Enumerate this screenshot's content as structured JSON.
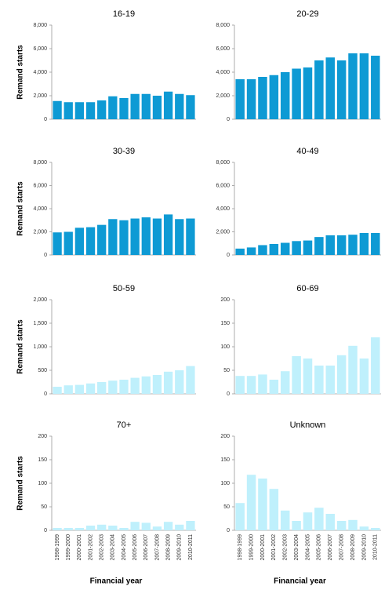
{
  "chart_data": [
    {
      "type": "bar",
      "title": "16-19",
      "ylabel": "Remand starts",
      "color": "#0e9ad4",
      "values": [
        1550,
        1450,
        1450,
        1450,
        1600,
        1950,
        1800,
        2150,
        2150,
        2000,
        2350,
        2150,
        2050
      ],
      "ylim": [
        0,
        8000
      ],
      "yticks": [
        0,
        {
          "value": 2000,
          "label": "2,000"
        },
        {
          "value": 4000,
          "label": "4,000"
        },
        {
          "value": 6000,
          "label": "6,000"
        },
        {
          "value": 8000,
          "label": "8,000"
        }
      ]
    },
    {
      "type": "bar",
      "title": "20-29",
      "color": "#0e9ad4",
      "values": [
        3400,
        3400,
        3600,
        3750,
        4000,
        4300,
        4400,
        5000,
        5250,
        5000,
        5600,
        5600,
        5400
      ],
      "ylim": [
        0,
        8000
      ],
      "yticks": [
        0,
        {
          "value": 2000,
          "label": "2,000"
        },
        {
          "value": 4000,
          "label": "4,000"
        },
        {
          "value": 6000,
          "label": "6,000"
        },
        {
          "value": 8000,
          "label": "8,000"
        }
      ]
    },
    {
      "type": "bar",
      "title": "30-39",
      "ylabel": "Remand starts",
      "color": "#0e9ad4",
      "values": [
        1950,
        2000,
        2350,
        2400,
        2600,
        3100,
        3000,
        3150,
        3250,
        3150,
        3500,
        3100,
        3150
      ],
      "ylim": [
        0,
        8000
      ],
      "yticks": [
        0,
        {
          "value": 2000,
          "label": "2,000"
        },
        {
          "value": 4000,
          "label": "4,000"
        },
        {
          "value": 6000,
          "label": "6,000"
        },
        {
          "value": 8000,
          "label": "8,000"
        }
      ]
    },
    {
      "type": "bar",
      "title": "40-49",
      "color": "#0e9ad4",
      "values": [
        550,
        650,
        850,
        950,
        1050,
        1200,
        1250,
        1550,
        1700,
        1700,
        1750,
        1900,
        1900
      ],
      "ylim": [
        0,
        8000
      ],
      "yticks": [
        0,
        {
          "value": 2000,
          "label": "2,000"
        },
        {
          "value": 4000,
          "label": "4,000"
        },
        {
          "value": 6000,
          "label": "6,000"
        },
        {
          "value": 8000,
          "label": "8,000"
        }
      ]
    },
    {
      "type": "bar",
      "title": "50-59",
      "ylabel": "Remand starts",
      "color": "#bff0fc",
      "values": [
        150,
        180,
        190,
        220,
        250,
        280,
        300,
        340,
        370,
        400,
        470,
        500,
        590
      ],
      "ylim": [
        0,
        2000
      ],
      "yticks": [
        0,
        500,
        {
          "value": 1000,
          "label": "1,000"
        },
        {
          "value": 1500,
          "label": "1,500"
        },
        {
          "value": 2000,
          "label": "2,000"
        }
      ]
    },
    {
      "type": "bar",
      "title": "60-69",
      "color": "#bff0fc",
      "values": [
        38,
        38,
        41,
        30,
        48,
        80,
        75,
        60,
        60,
        82,
        102,
        75,
        120
      ],
      "ylim": [
        0,
        200
      ],
      "yticks": [
        0,
        50,
        100,
        150,
        200
      ]
    },
    {
      "type": "bar",
      "title": "70+",
      "ylabel": "Remand starts",
      "xlabel": "Financial year",
      "color": "#bff0fc",
      "categories": [
        "1998-1999",
        "1999-2000",
        "2000-2001",
        "2001-2002",
        "2002-2003",
        "2003-2004",
        "2004-2005",
        "2005-2006",
        "2006-2007",
        "2007-2008",
        "2008-2009",
        "2009-2010",
        "2010-2011"
      ],
      "values": [
        5,
        5,
        5,
        10,
        12,
        10,
        5,
        18,
        16,
        8,
        18,
        12,
        20
      ],
      "ylim": [
        0,
        200
      ],
      "yticks": [
        0,
        50,
        100,
        150,
        200
      ]
    },
    {
      "type": "bar",
      "title": "Unknown",
      "xlabel": "Financial year",
      "color": "#bff0fc",
      "categories": [
        "1998-1999",
        "1999-2000",
        "2000-2001",
        "2001-2002",
        "2002-2003",
        "2003-2004",
        "2004-2005",
        "2005-2006",
        "2006-2007",
        "2007-2008",
        "2008-2009",
        "2009-2010",
        "2010-2011"
      ],
      "values": [
        58,
        118,
        110,
        88,
        42,
        20,
        38,
        48,
        35,
        20,
        22,
        8,
        5
      ],
      "ylim": [
        0,
        200
      ],
      "yticks": [
        0,
        50,
        100,
        150,
        200
      ]
    }
  ]
}
